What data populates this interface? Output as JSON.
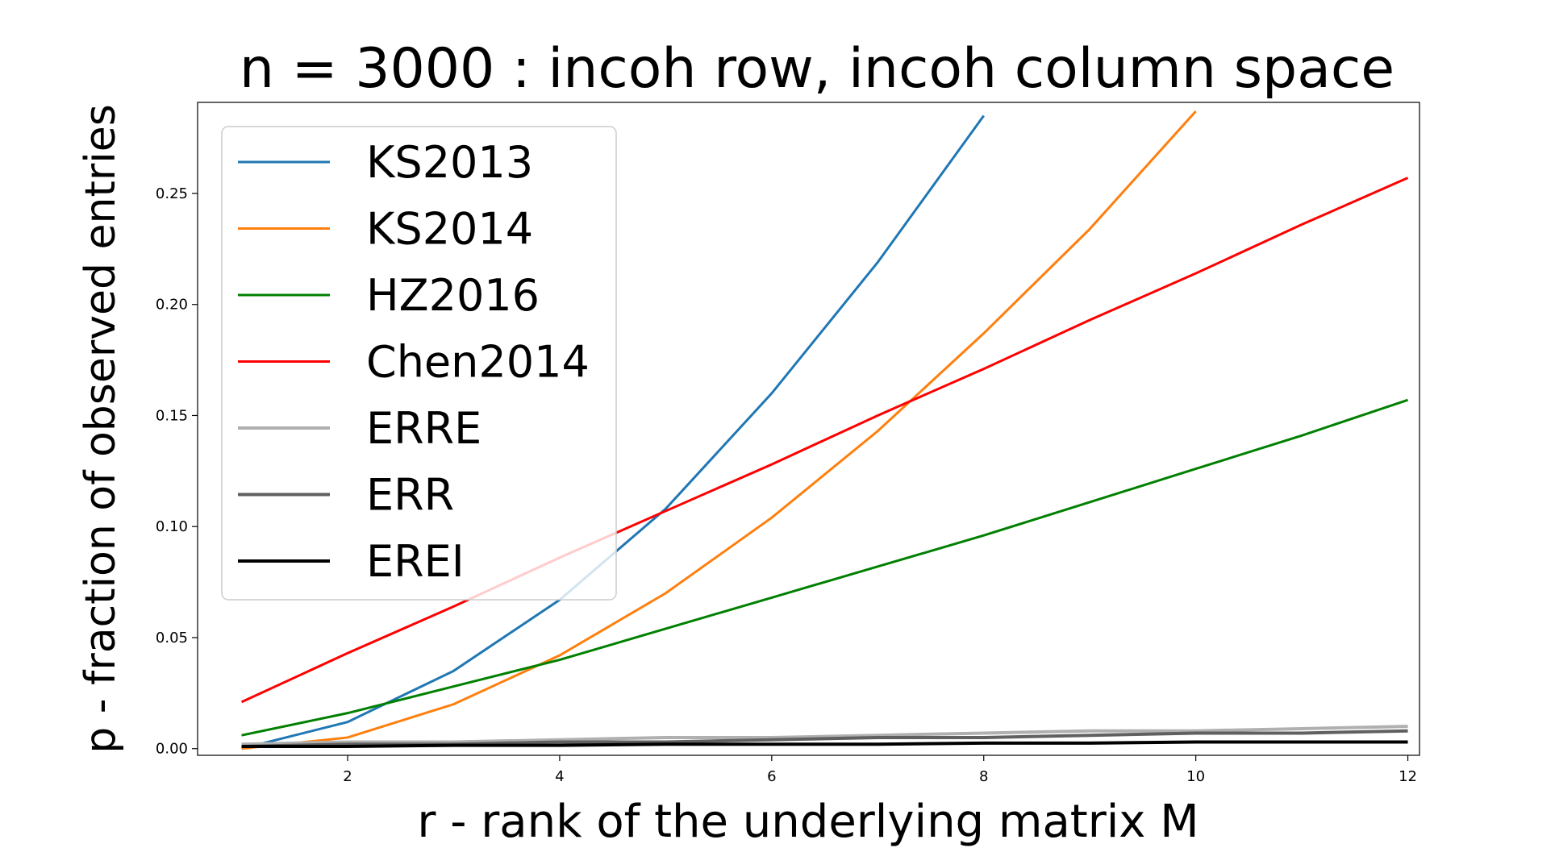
{
  "chart_data": {
    "type": "line",
    "title": "n = 3000 : incoh row, incoh column space",
    "x_label": "r - rank of the underlying matrix M",
    "y_label": "p - fraction of observed entries",
    "x": [
      1,
      2,
      3,
      4,
      5,
      6,
      7,
      8,
      9,
      10,
      11,
      12
    ],
    "series": [
      {
        "name": "KS2013",
        "color": "#1f77b4",
        "values": [
          0.0,
          0.012,
          0.035,
          0.067,
          0.108,
          0.16,
          0.219,
          0.285,
          null,
          null,
          null,
          null
        ]
      },
      {
        "name": "KS2014",
        "color": "#ff7f0e",
        "values": [
          0.0,
          0.005,
          0.02,
          0.042,
          0.07,
          0.104,
          0.143,
          0.187,
          0.234,
          0.287,
          null,
          null
        ]
      },
      {
        "name": "HZ2016",
        "color": "#008000",
        "values": [
          0.006,
          0.016,
          0.028,
          0.04,
          0.054,
          0.068,
          0.082,
          0.096,
          0.111,
          0.126,
          0.141,
          0.157
        ]
      },
      {
        "name": "Chen2014",
        "color": "#ff0000",
        "values": [
          0.021,
          0.043,
          0.064,
          0.086,
          0.107,
          0.128,
          0.15,
          0.171,
          0.193,
          0.214,
          0.236,
          0.257
        ]
      },
      {
        "name": "ERRE",
        "color": "#b0b0b0",
        "values": [
          0.002,
          0.003,
          0.003,
          0.004,
          0.005,
          0.005,
          0.006,
          0.007,
          0.008,
          0.008,
          0.009,
          0.01
        ]
      },
      {
        "name": "ERR",
        "color": "#606060",
        "values": [
          0.001,
          0.002,
          0.002,
          0.003,
          0.003,
          0.004,
          0.005,
          0.005,
          0.006,
          0.007,
          0.007,
          0.008
        ]
      },
      {
        "name": "EREI",
        "color": "#000000",
        "values": [
          0.001,
          0.001,
          0.0015,
          0.0015,
          0.002,
          0.002,
          0.002,
          0.0025,
          0.0025,
          0.003,
          0.003,
          0.003
        ]
      }
    ],
    "xlim": [
      0.585,
      12.11
    ],
    "ylim": [
      -0.003,
      0.291
    ],
    "xticks": [
      2,
      4,
      6,
      8,
      10,
      12
    ],
    "yticks": [
      {
        "value": 0,
        "label": "0.00"
      },
      0.05,
      {
        "value": 0.1,
        "label": "0.10"
      },
      0.15,
      {
        "value": 0.2,
        "label": "0.20"
      },
      0.25
    ],
    "legend": "upper left"
  }
}
